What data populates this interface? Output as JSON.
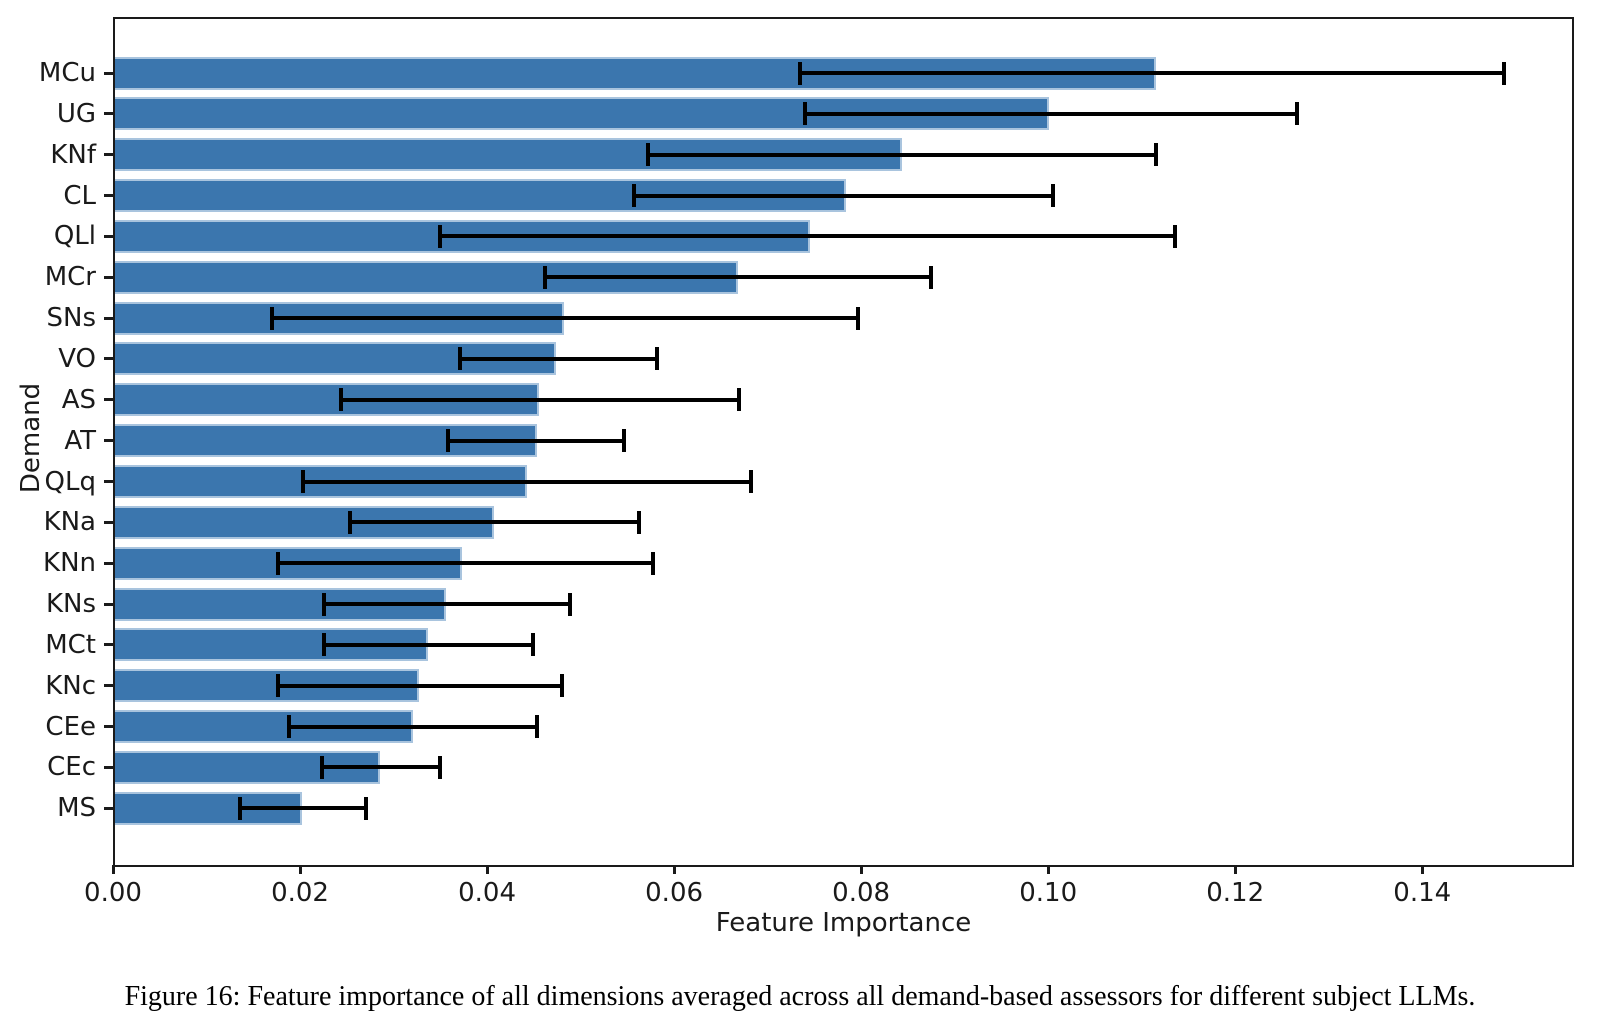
{
  "caption": "Figure 16: Feature importance of all dimensions averaged across all demand-based assessors for different subject LLMs.",
  "chart_data": {
    "type": "bar",
    "orientation": "horizontal",
    "xlabel": "Feature Importance",
    "ylabel": "Demand",
    "xlim": [
      0,
      0.1558
    ],
    "xticks": [
      0.0,
      0.02,
      0.04,
      0.06,
      0.08,
      0.1,
      0.12,
      0.14
    ],
    "grid": false,
    "legend": null,
    "bar_color": "#3b76ae",
    "bar_edge_color": "#a9c4de",
    "error_color": "#000000",
    "categories": [
      "MCu",
      "UG",
      "KNf",
      "CL",
      "QLl",
      "MCr",
      "SNs",
      "VO",
      "AS",
      "AT",
      "QLq",
      "KNa",
      "KNn",
      "KNs",
      "MCt",
      "KNc",
      "CEe",
      "CEc",
      "MS"
    ],
    "values": [
      0.1113,
      0.0999,
      0.0842,
      0.0782,
      0.0743,
      0.0666,
      0.048,
      0.0472,
      0.0453,
      0.0451,
      0.0441,
      0.0405,
      0.0371,
      0.0354,
      0.0335,
      0.0325,
      0.0319,
      0.0283,
      0.02
    ],
    "error_low": [
      0.0733,
      0.0738,
      0.057,
      0.0555,
      0.0348,
      0.046,
      0.0168,
      0.0369,
      0.0242,
      0.0356,
      0.0201,
      0.0251,
      0.0174,
      0.0224,
      0.0224,
      0.0174,
      0.0186,
      0.0221,
      0.0134
    ],
    "error_high": [
      0.1485,
      0.1264,
      0.1113,
      0.1003,
      0.1133,
      0.0873,
      0.0795,
      0.058,
      0.0667,
      0.0544,
      0.068,
      0.056,
      0.0575,
      0.0487,
      0.0447,
      0.0478,
      0.0451,
      0.0347,
      0.0268
    ]
  }
}
